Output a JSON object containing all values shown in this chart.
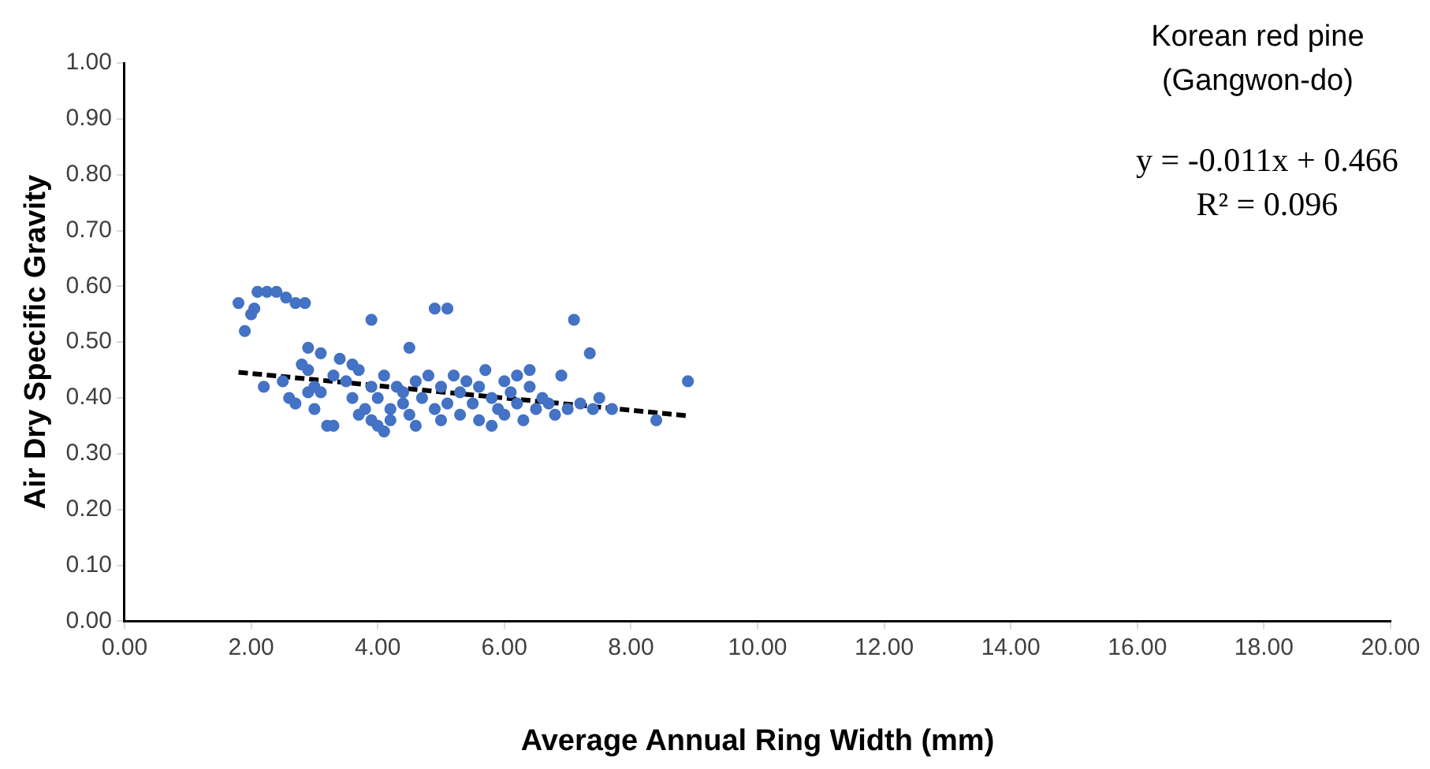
{
  "chart_data": {
    "type": "scatter",
    "xlabel": "Average Annual Ring Width (mm)",
    "ylabel": "Air Dry Specific Gravity",
    "annotations": [
      "Korean red pine",
      "(Gangwon-do)",
      "y = -0.011x + 0.466",
      "R² = 0.096"
    ],
    "xlim": [
      0,
      20
    ],
    "ylim": [
      0,
      1
    ],
    "xticks": [
      {
        "value": 0,
        "label": "0.00"
      },
      {
        "value": 2,
        "label": "2.00"
      },
      {
        "value": 4,
        "label": "4.00"
      },
      {
        "value": 6,
        "label": "6.00"
      },
      {
        "value": 8,
        "label": "8.00"
      },
      {
        "value": 10,
        "label": "10.00"
      },
      {
        "value": 12,
        "label": "12.00"
      },
      {
        "value": 14,
        "label": "14.00"
      },
      {
        "value": 16,
        "label": "16.00"
      },
      {
        "value": 18,
        "label": "18.00"
      },
      {
        "value": 20,
        "label": "20.00"
      }
    ],
    "yticks": [
      {
        "value": 0,
        "label": "0.00"
      },
      {
        "value": 0.1,
        "label": "0.10"
      },
      {
        "value": 0.2,
        "label": "0.20"
      },
      {
        "value": 0.3,
        "label": "0.30"
      },
      {
        "value": 0.4,
        "label": "0.40"
      },
      {
        "value": 0.5,
        "label": "0.50"
      },
      {
        "value": 0.6,
        "label": "0.60"
      },
      {
        "value": 0.7,
        "label": "0.70"
      },
      {
        "value": 0.8,
        "label": "0.80"
      },
      {
        "value": 0.9,
        "label": "0.90"
      },
      {
        "value": 1,
        "label": "1.00"
      }
    ],
    "grid": false,
    "legend": false,
    "marker": "circle",
    "series": [
      {
        "color": "#4472c4",
        "x": [
          1.8,
          1.9,
          2.0,
          2.05,
          2.1,
          2.25,
          2.4,
          2.55,
          2.7,
          2.85,
          3.9,
          4.9,
          5.1,
          7.1,
          7.35,
          8.9,
          4.5,
          3.1,
          2.9,
          2.2,
          2.5,
          2.6,
          2.7,
          2.8,
          2.9,
          3.0,
          3.0,
          3.1,
          3.2,
          3.3,
          3.3,
          3.4,
          3.5,
          3.6,
          3.7,
          3.6,
          3.7,
          3.8,
          3.9,
          4.0,
          4.0,
          4.1,
          4.1,
          4.2,
          4.2,
          4.3,
          4.4,
          4.5,
          4.6,
          4.6,
          4.7,
          4.8,
          4.9,
          5.0,
          5.0,
          5.1,
          5.2,
          5.3,
          5.3,
          5.4,
          5.5,
          5.6,
          5.6,
          5.7,
          5.8,
          5.9,
          6.0,
          6.0,
          6.1,
          6.2,
          6.2,
          6.3,
          6.4,
          6.4,
          6.5,
          6.6,
          6.7,
          6.8,
          6.9,
          7.0,
          7.2,
          7.4,
          7.5,
          7.7,
          8.4,
          3.9,
          4.4,
          5.8,
          2.9
        ],
        "values": [
          0.57,
          0.52,
          0.55,
          0.56,
          0.59,
          0.59,
          0.59,
          0.58,
          0.57,
          0.57,
          0.54,
          0.56,
          0.56,
          0.54,
          0.48,
          0.43,
          0.49,
          0.48,
          0.49,
          0.42,
          0.43,
          0.4,
          0.39,
          0.46,
          0.45,
          0.42,
          0.38,
          0.41,
          0.35,
          0.35,
          0.44,
          0.47,
          0.43,
          0.46,
          0.45,
          0.4,
          0.37,
          0.38,
          0.36,
          0.35,
          0.4,
          0.34,
          0.44,
          0.38,
          0.36,
          0.42,
          0.39,
          0.37,
          0.35,
          0.43,
          0.4,
          0.44,
          0.38,
          0.36,
          0.42,
          0.39,
          0.44,
          0.37,
          0.41,
          0.43,
          0.39,
          0.36,
          0.42,
          0.45,
          0.4,
          0.38,
          0.43,
          0.37,
          0.41,
          0.39,
          0.44,
          0.36,
          0.42,
          0.45,
          0.38,
          0.4,
          0.39,
          0.37,
          0.44,
          0.38,
          0.39,
          0.38,
          0.4,
          0.38,
          0.36,
          0.42,
          0.41,
          0.35,
          0.41
        ]
      },
      {
        "type": "line",
        "color": "#000000",
        "line_style": "dashed",
        "marker": "none",
        "x": [
          1.8,
          8.9
        ],
        "values": [
          0.446,
          0.368
        ]
      }
    ]
  }
}
